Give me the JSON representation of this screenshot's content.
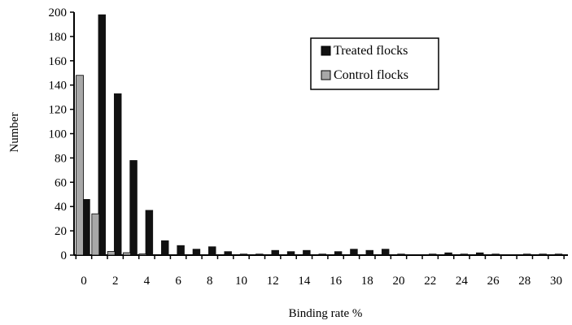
{
  "chart_data": {
    "type": "bar",
    "xlabel": "Binding rate %",
    "ylabel": "Number",
    "ylim": [
      0,
      200
    ],
    "yticks": [
      0,
      20,
      40,
      60,
      80,
      100,
      120,
      140,
      160,
      180,
      200
    ],
    "xlim": [
      -0.5,
      30
    ],
    "xticks": [
      0,
      2,
      4,
      6,
      8,
      10,
      12,
      14,
      16,
      18,
      20,
      22,
      24,
      26,
      28,
      30
    ],
    "legend_position": "top-right",
    "series": [
      {
        "name": "Treated flocks",
        "color": "#111111",
        "x": [
          0,
          1,
          2,
          3,
          4,
          5,
          6,
          7,
          8,
          9,
          10,
          11,
          12,
          13,
          14,
          15,
          16,
          17,
          18,
          19,
          20,
          21,
          22,
          23,
          24,
          25,
          26,
          27,
          28,
          29,
          30
        ],
        "values": [
          46,
          198,
          133,
          78,
          37,
          12,
          8,
          5,
          7,
          3,
          1,
          1,
          4,
          3,
          4,
          1,
          3,
          5,
          4,
          5,
          1,
          0,
          1,
          2,
          1,
          2,
          1,
          0,
          1,
          1,
          1
        ]
      },
      {
        "name": "Control flocks",
        "color": "#a8a8a8",
        "x": [
          0,
          1,
          2,
          3,
          4
        ],
        "values": [
          148,
          34,
          3,
          2,
          1
        ]
      }
    ]
  }
}
